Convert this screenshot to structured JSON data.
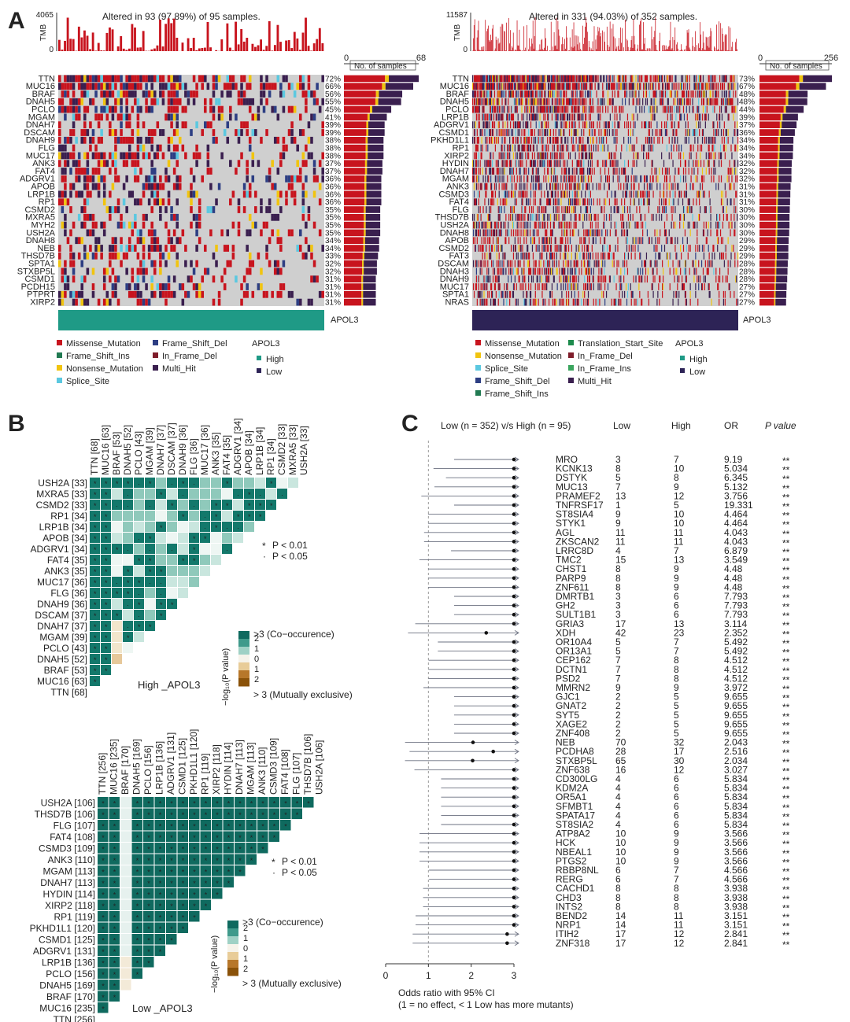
{
  "panel_labels": {
    "a": "A",
    "b": "B",
    "c": "C"
  },
  "colors": {
    "missense": "#c8141e",
    "frameshift_ins": "#217a52",
    "nonsense": "#f1c40f",
    "splice": "#5bc8e0",
    "frameshift_del": "#2d3e83",
    "inframe_del": "#7f1d2b",
    "multi_hit": "#3a1f4f",
    "translation_start": "#1d8b4d",
    "inframe_ins": "#3aa55e",
    "wt": "#cfcfcf",
    "high": "#1f9a86",
    "low": "#2d2356",
    "cooc": "#0f6a5f",
    "excl": "#a6620f",
    "tmb": "#c8141e",
    "line": "#6b7080"
  },
  "oncoplot_high": {
    "title": "Altered in 93 (97.89%) of 95 samples.",
    "tmb_label": "TMB",
    "tmb_max": "4065",
    "tmb_min": "0",
    "axis_min": "0",
    "axis_max": "68",
    "axis_label": "No. of samples",
    "group_label": "APOL3",
    "genes": [
      "TTN",
      "MUC16",
      "BRAF",
      "DNAH5",
      "PCLO",
      "MGAM",
      "DNAH7",
      "DSCAM",
      "DNAH9",
      "FLG",
      "MUC17",
      "ANK3",
      "FAT4",
      "ADGRV1",
      "APOB",
      "LRP1B",
      "RP1",
      "CSMD2",
      "MXRA5",
      "MYH2",
      "USH2A",
      "DNAH8",
      "NEB",
      "THSD7B",
      "SPTA1",
      "STXBP5L",
      "CSMD1",
      "PCDH15",
      "PTPRT",
      "XIRP2"
    ],
    "pcts": [
      "72%",
      "66%",
      "56%",
      "55%",
      "45%",
      "41%",
      "39%",
      "39%",
      "38%",
      "38%",
      "38%",
      "37%",
      "37%",
      "36%",
      "36%",
      "36%",
      "36%",
      "35%",
      "35%",
      "35%",
      "35%",
      "34%",
      "34%",
      "33%",
      "32%",
      "32%",
      "31%",
      "31%",
      "31%",
      "31%"
    ],
    "counts": [
      68,
      63,
      53,
      52,
      43,
      39,
      37,
      37,
      36,
      36,
      36,
      35,
      35,
      34,
      34,
      34,
      34,
      33,
      33,
      33,
      33,
      32,
      32,
      31,
      30,
      30,
      29,
      29,
      29,
      29
    ],
    "legend": {
      "col1": [
        "Missense_Mutation",
        "Frame_Shift_Ins",
        "Nonsense_Mutation",
        "Splice_Site"
      ],
      "col2": [
        "Frame_Shift_Del",
        "In_Frame_Del",
        "Multi_Hit"
      ],
      "group_title": "APOL3",
      "group_items": [
        "High",
        "Low"
      ]
    }
  },
  "oncoplot_low": {
    "title": "Altered in 331 (94.03%) of 352 samples.",
    "tmb_label": "TMB",
    "tmb_max": "11587",
    "tmb_min": "0",
    "axis_min": "0",
    "axis_max": "256",
    "axis_label": "No. of samples",
    "group_label": "APOL3",
    "genes": [
      "TTN",
      "MUC16",
      "BRAF",
      "DNAH5",
      "PCLO",
      "LRP1B",
      "ADGRV1",
      "CSMD1",
      "PKHD1L1",
      "RP1",
      "XIRP2",
      "HYDIN",
      "DNAH7",
      "MGAM",
      "ANK3",
      "CSMD3",
      "FAT4",
      "FLG",
      "THSD7B",
      "USH2A",
      "DNAH8",
      "APOB",
      "CSMD2",
      "FAT3",
      "DSCAM",
      "DNAH3",
      "DNAH9",
      "MUC17",
      "SPTA1",
      "NRAS"
    ],
    "pcts": [
      "73%",
      "67%",
      "48%",
      "48%",
      "44%",
      "39%",
      "37%",
      "36%",
      "34%",
      "34%",
      "34%",
      "32%",
      "32%",
      "32%",
      "31%",
      "31%",
      "31%",
      "30%",
      "30%",
      "30%",
      "30%",
      "29%",
      "29%",
      "29%",
      "28%",
      "28%",
      "28%",
      "27%",
      "27%",
      "27%"
    ],
    "counts": [
      256,
      235,
      170,
      169,
      156,
      136,
      131,
      125,
      120,
      119,
      118,
      114,
      113,
      113,
      110,
      109,
      108,
      107,
      106,
      106,
      105,
      103,
      102,
      102,
      100,
      99,
      98,
      96,
      95,
      94
    ],
    "legend": {
      "col1": [
        "Missense_Mutation",
        "Nonsense_Mutation",
        "Splice_Site",
        "Frame_Shift_Del",
        "Frame_Shift_Ins"
      ],
      "col2": [
        "Translation_Start_Site",
        "In_Frame_Del",
        "In_Frame_Ins",
        "Multi_Hit"
      ],
      "group_title": "APOL3",
      "group_items": [
        "High",
        "Low"
      ]
    }
  },
  "cooc_high": {
    "title": "High _APOL3",
    "genes": [
      "USH2A",
      "MXRA5",
      "CSMD2",
      "RP1",
      "LRP1B",
      "APOB",
      "ADGRV1",
      "FAT4",
      "ANK3",
      "MUC17",
      "FLG",
      "DNAH9",
      "DSCAM",
      "DNAH7",
      "MGAM",
      "PCLO",
      "DNAH5",
      "BRAF",
      "MUC16",
      "TTN"
    ],
    "counts": [
      33,
      33,
      33,
      34,
      34,
      34,
      34,
      35,
      35,
      36,
      36,
      36,
      37,
      37,
      39,
      43,
      52,
      53,
      63,
      68
    ],
    "sig1": "*",
    "sig1_label": "P < 0.01",
    "sig2": "·",
    "sig2_label": "P < 0.05",
    "scale_top": ">3 (Co−occurence)",
    "scale_bottom": "> 3 (Mutually exclusive)",
    "scale_ticks": [
      "2",
      "1",
      "0",
      "1",
      "2"
    ],
    "scale_axis": "−log₁₀(P value)"
  },
  "cooc_low": {
    "title": "Low _APOL3",
    "genes": [
      "USH2A",
      "THSD7B",
      "FLG",
      "FAT4",
      "CSMD3",
      "ANK3",
      "MGAM",
      "DNAH7",
      "HYDIN",
      "XIRP2",
      "RP1",
      "PKHD1L1",
      "CSMD1",
      "ADGRV1",
      "LRP1B",
      "PCLO",
      "DNAH5",
      "BRAF",
      "MUC16",
      "TTN"
    ],
    "counts": [
      106,
      106,
      107,
      108,
      109,
      110,
      113,
      113,
      114,
      118,
      119,
      120,
      125,
      131,
      136,
      156,
      169,
      170,
      235,
      256
    ],
    "sig1": "*",
    "sig1_label": "P < 0.01",
    "sig2": "·",
    "sig2_label": "P < 0.05",
    "scale_top": ">3 (Co−occurence)",
    "scale_bottom": "> 3 (Mutually exclusive)",
    "scale_ticks": [
      "2",
      "1",
      "0",
      "1",
      "2"
    ],
    "scale_axis": "−log₁₀(P value)"
  },
  "chart_data": {
    "type": "forest",
    "title": "Low (n = 352) v/s High (n = 95)",
    "headers": {
      "low": "Low",
      "high": "High",
      "or": "OR",
      "p": "P value"
    },
    "xlabel": "Odds ratio with 95% CI",
    "xnote": "(1 = no effect, < 1 Low has more mutants)",
    "xlim": [
      0,
      3
    ],
    "xticks": [
      "0",
      "1",
      "2",
      "3"
    ],
    "rows": [
      {
        "gene": "MRO",
        "low": "3",
        "high": "7",
        "or": "9.19",
        "p": "**"
      },
      {
        "gene": "KCNK13",
        "low": "8",
        "high": "10",
        "or": "5.034",
        "p": "**"
      },
      {
        "gene": "DSTYK",
        "low": "5",
        "high": "8",
        "or": "6.345",
        "p": "**"
      },
      {
        "gene": "MUC13",
        "low": "7",
        "high": "9",
        "or": "5.132",
        "p": "**"
      },
      {
        "gene": "PRAMEF2",
        "low": "13",
        "high": "12",
        "or": "3.756",
        "p": "**"
      },
      {
        "gene": "TNFRSF17",
        "low": "1",
        "high": "5",
        "or": "19.331",
        "p": "**"
      },
      {
        "gene": "ST8SIA4",
        "low": "9",
        "high": "10",
        "or": "4.464",
        "p": "**"
      },
      {
        "gene": "STYK1",
        "low": "9",
        "high": "10",
        "or": "4.464",
        "p": "**"
      },
      {
        "gene": "AGL",
        "low": "11",
        "high": "11",
        "or": "4.043",
        "p": "**"
      },
      {
        "gene": "ZKSCAN2",
        "low": "11",
        "high": "11",
        "or": "4.043",
        "p": "**"
      },
      {
        "gene": "LRRC8D",
        "low": "4",
        "high": "7",
        "or": "6.879",
        "p": "**"
      },
      {
        "gene": "TMC2",
        "low": "15",
        "high": "13",
        "or": "3.549",
        "p": "**"
      },
      {
        "gene": "CHST1",
        "low": "8",
        "high": "9",
        "or": "4.48",
        "p": "**"
      },
      {
        "gene": "PARP9",
        "low": "8",
        "high": "9",
        "or": "4.48",
        "p": "**"
      },
      {
        "gene": "ZNF611",
        "low": "8",
        "high": "9",
        "or": "4.48",
        "p": "**"
      },
      {
        "gene": "DMRTB1",
        "low": "3",
        "high": "6",
        "or": "7.793",
        "p": "**"
      },
      {
        "gene": "GH2",
        "low": "3",
        "high": "6",
        "or": "7.793",
        "p": "**"
      },
      {
        "gene": "SULT1B1",
        "low": "3",
        "high": "6",
        "or": "7.793",
        "p": "**"
      },
      {
        "gene": "GRIA3",
        "low": "17",
        "high": "13",
        "or": "3.114",
        "p": "**"
      },
      {
        "gene": "XDH",
        "low": "42",
        "high": "23",
        "or": "2.352",
        "p": "**"
      },
      {
        "gene": "OR10A4",
        "low": "5",
        "high": "7",
        "or": "5.492",
        "p": "**"
      },
      {
        "gene": "OR13A1",
        "low": "5",
        "high": "7",
        "or": "5.492",
        "p": "**"
      },
      {
        "gene": "CEP162",
        "low": "7",
        "high": "8",
        "or": "4.512",
        "p": "**"
      },
      {
        "gene": "DCTN1",
        "low": "7",
        "high": "8",
        "or": "4.512",
        "p": "**"
      },
      {
        "gene": "PSD2",
        "low": "7",
        "high": "8",
        "or": "4.512",
        "p": "**"
      },
      {
        "gene": "MMRN2",
        "low": "9",
        "high": "9",
        "or": "3.972",
        "p": "**"
      },
      {
        "gene": "GJC1",
        "low": "2",
        "high": "5",
        "or": "9.655",
        "p": "**"
      },
      {
        "gene": "GNAT2",
        "low": "2",
        "high": "5",
        "or": "9.655",
        "p": "**"
      },
      {
        "gene": "SYT5",
        "low": "2",
        "high": "5",
        "or": "9.655",
        "p": "**"
      },
      {
        "gene": "XAGE2",
        "low": "2",
        "high": "5",
        "or": "9.655",
        "p": "**"
      },
      {
        "gene": "ZNF408",
        "low": "2",
        "high": "5",
        "or": "9.655",
        "p": "**"
      },
      {
        "gene": "NEB",
        "low": "70",
        "high": "32",
        "or": "2.043",
        "p": "**"
      },
      {
        "gene": "PCDHA8",
        "low": "28",
        "high": "17",
        "or": "2.516",
        "p": "**"
      },
      {
        "gene": "STXBP5L",
        "low": "65",
        "high": "30",
        "or": "2.034",
        "p": "**"
      },
      {
        "gene": "ZNF638",
        "low": "16",
        "high": "12",
        "or": "3.027",
        "p": "**"
      },
      {
        "gene": "CD300LG",
        "low": "4",
        "high": "6",
        "or": "5.834",
        "p": "**"
      },
      {
        "gene": "KDM2A",
        "low": "4",
        "high": "6",
        "or": "5.834",
        "p": "**"
      },
      {
        "gene": "OR5A1",
        "low": "4",
        "high": "6",
        "or": "5.834",
        "p": "**"
      },
      {
        "gene": "SFMBT1",
        "low": "4",
        "high": "6",
        "or": "5.834",
        "p": "**"
      },
      {
        "gene": "SPATA17",
        "low": "4",
        "high": "6",
        "or": "5.834",
        "p": "**"
      },
      {
        "gene": "ST8SIA2",
        "low": "4",
        "high": "6",
        "or": "5.834",
        "p": "**"
      },
      {
        "gene": "ATP8A2",
        "low": "10",
        "high": "9",
        "or": "3.566",
        "p": "**"
      },
      {
        "gene": "HCK",
        "low": "10",
        "high": "9",
        "or": "3.566",
        "p": "**"
      },
      {
        "gene": "NBEAL1",
        "low": "10",
        "high": "9",
        "or": "3.566",
        "p": "**"
      },
      {
        "gene": "PTGS2",
        "low": "10",
        "high": "9",
        "or": "3.566",
        "p": "**"
      },
      {
        "gene": "RBBP8NL",
        "low": "6",
        "high": "7",
        "or": "4.566",
        "p": "**"
      },
      {
        "gene": "RERG",
        "low": "6",
        "high": "7",
        "or": "4.566",
        "p": "**"
      },
      {
        "gene": "CACHD1",
        "low": "8",
        "high": "8",
        "or": "3.938",
        "p": "**"
      },
      {
        "gene": "CHD3",
        "low": "8",
        "high": "8",
        "or": "3.938",
        "p": "**"
      },
      {
        "gene": "INTS2",
        "low": "8",
        "high": "8",
        "or": "3.938",
        "p": "**"
      },
      {
        "gene": "BEND2",
        "low": "14",
        "high": "11",
        "or": "3.151",
        "p": "**"
      },
      {
        "gene": "NRP1",
        "low": "14",
        "high": "11",
        "or": "3.151",
        "p": "**"
      },
      {
        "gene": "ITIH2",
        "low": "17",
        "high": "12",
        "or": "2.841",
        "p": "**"
      },
      {
        "gene": "ZNF318",
        "low": "17",
        "high": "12",
        "or": "2.841",
        "p": "**"
      }
    ]
  }
}
